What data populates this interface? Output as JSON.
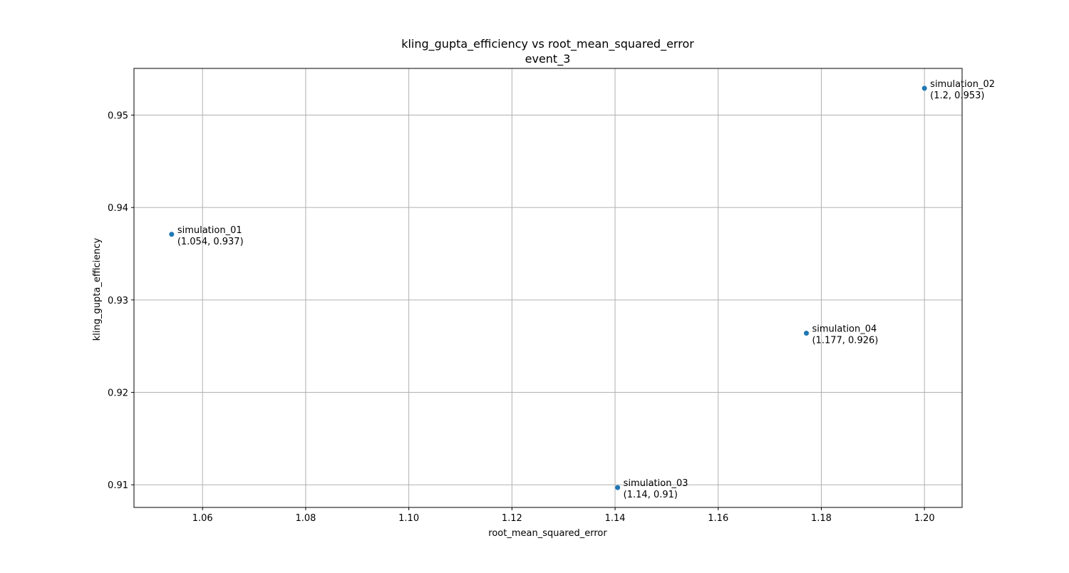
{
  "chart_data": {
    "type": "scatter",
    "title": "kling_gupta_efficiency vs root_mean_squared_error",
    "subtitle": "event_3",
    "xlabel": "root_mean_squared_error",
    "ylabel": "kling_gupta_efficiency",
    "xlim": [
      1.0467,
      1.2073
    ],
    "ylim": [
      0.90755,
      0.95505
    ],
    "x_ticks": [
      1.06,
      1.08,
      1.1,
      1.12,
      1.14,
      1.16,
      1.18,
      1.2
    ],
    "x_tick_labels": [
      "1.06",
      "1.08",
      "1.10",
      "1.12",
      "1.14",
      "1.16",
      "1.18",
      "1.20"
    ],
    "y_ticks": [
      0.91,
      0.92,
      0.93,
      0.94,
      0.95
    ],
    "y_tick_labels": [
      "0.91",
      "0.92",
      "0.93",
      "0.94",
      "0.95"
    ],
    "grid": true,
    "marker_color": "#1f77b4",
    "points": [
      {
        "name": "simulation_01",
        "x": 1.054,
        "y": 0.9371,
        "coord_label": "(1.054, 0.937)"
      },
      {
        "name": "simulation_02",
        "x": 1.2,
        "y": 0.9529,
        "coord_label": "(1.2, 0.953)"
      },
      {
        "name": "simulation_03",
        "x": 1.1405,
        "y": 0.9097,
        "coord_label": "(1.14, 0.91)"
      },
      {
        "name": "simulation_04",
        "x": 1.1771,
        "y": 0.9264,
        "coord_label": "(1.177, 0.926)"
      }
    ]
  }
}
